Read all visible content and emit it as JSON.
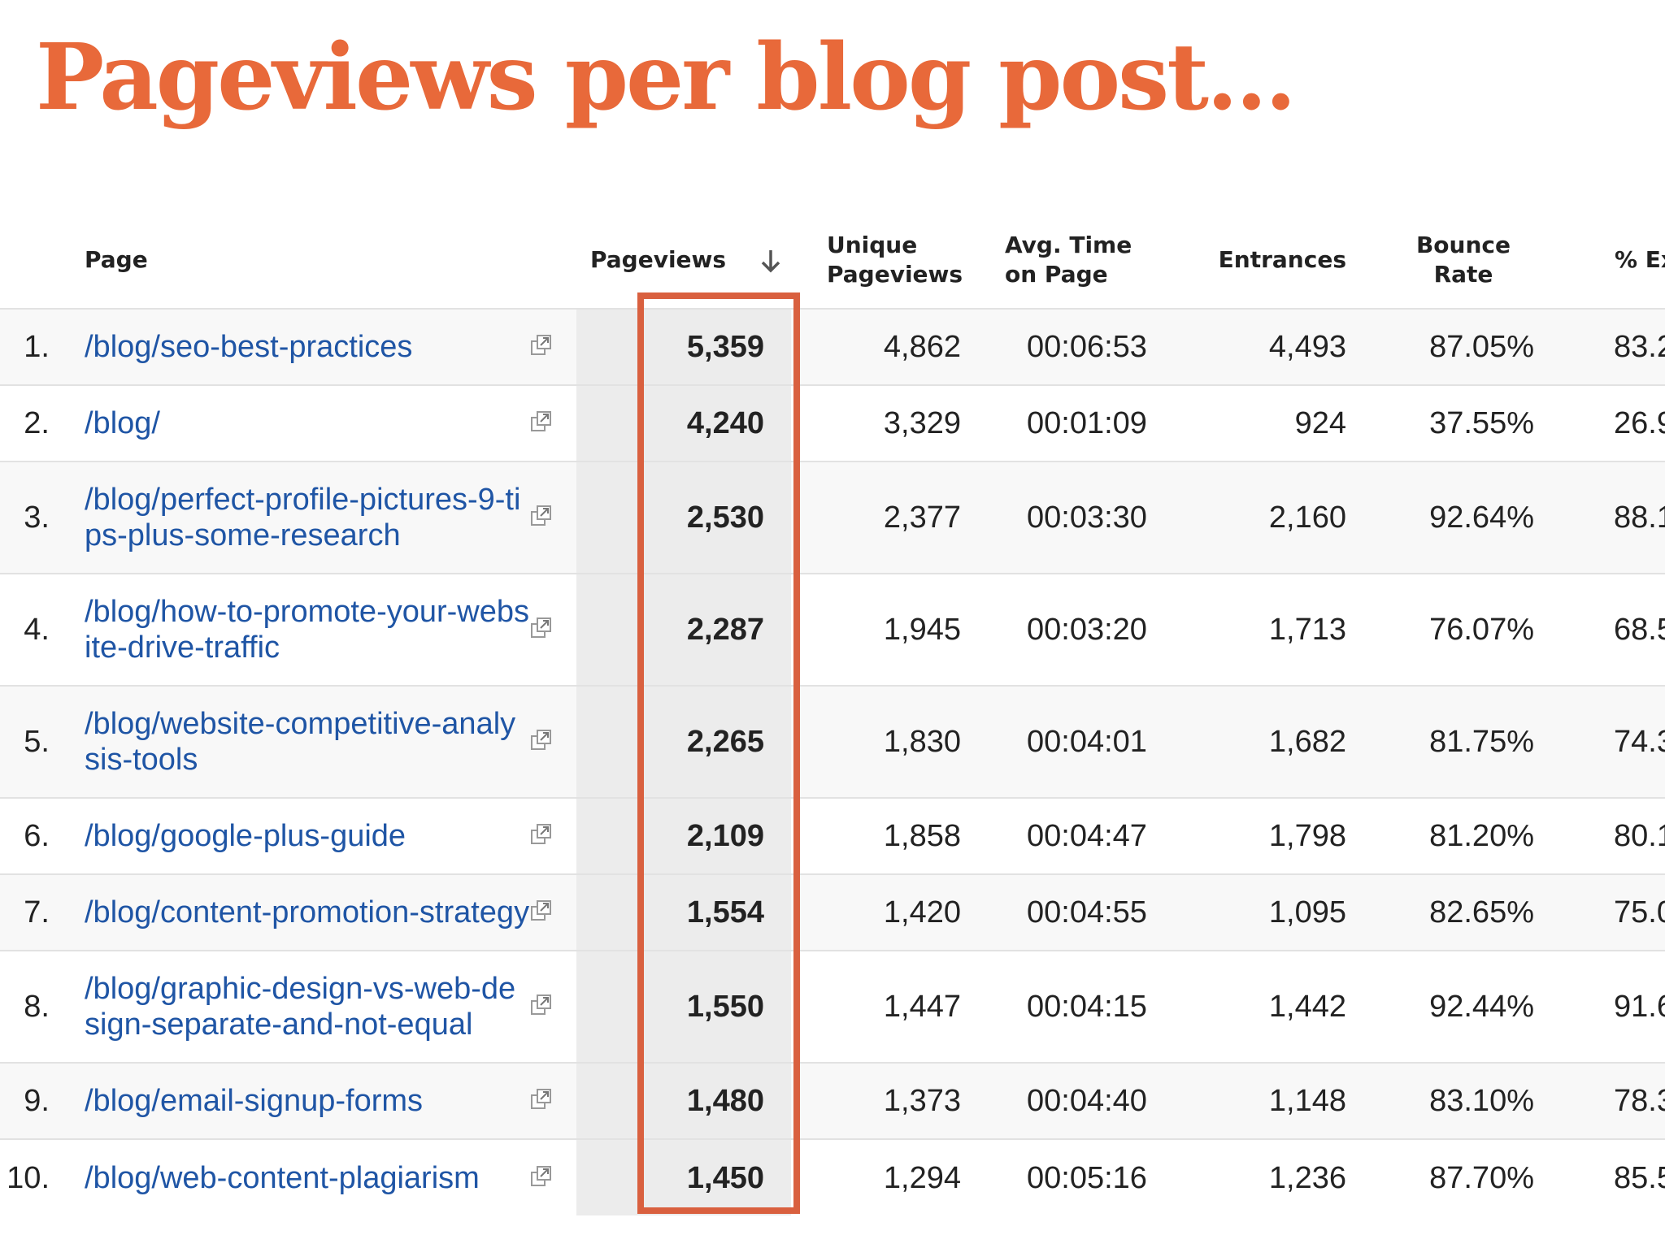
{
  "title": "Pageviews per blog post...",
  "table": {
    "headers": [
      "Page",
      "Pageviews",
      "Unique Pageviews",
      "Avg. Time on Page",
      "Entrances",
      "Bounce Rate",
      "% Exit"
    ],
    "rows": [
      [
        "1.",
        "/blog/seo-best-practices",
        "5,359",
        "4,862",
        "00:06:53",
        "4,493",
        "87.05%",
        "83.2"
      ],
      [
        "2.",
        "/blog/",
        "4,240",
        "3,329",
        "00:01:09",
        "924",
        "37.55%",
        "26.9"
      ],
      [
        "3.",
        "/blog/perfect-profile-pictures-9-tips-plus-some-research",
        "2,530",
        "2,377",
        "00:03:30",
        "2,160",
        "92.64%",
        "88.1"
      ],
      [
        "4.",
        "/blog/how-to-promote-your-website-drive-traffic",
        "2,287",
        "1,945",
        "00:03:20",
        "1,713",
        "76.07%",
        "68.5"
      ],
      [
        "5.",
        "/blog/website-competitive-analysis-tools",
        "2,265",
        "1,830",
        "00:04:01",
        "1,682",
        "81.75%",
        "74.3"
      ],
      [
        "6.",
        "/blog/google-plus-guide",
        "2,109",
        "1,858",
        "00:04:47",
        "1,798",
        "81.20%",
        "80.1"
      ],
      [
        "7.",
        "/blog/content-promotion-strategy",
        "1,554",
        "1,420",
        "00:04:55",
        "1,095",
        "82.65%",
        "75.0"
      ],
      [
        "8.",
        "/blog/graphic-design-vs-web-design-separate-and-not-equal",
        "1,550",
        "1,447",
        "00:04:15",
        "1,442",
        "92.44%",
        "91.6"
      ],
      [
        "9.",
        "/blog/email-signup-forms",
        "1,480",
        "1,373",
        "00:04:40",
        "1,148",
        "83.10%",
        "78.3"
      ],
      [
        "10.",
        "/blog/web-content-plagiarism",
        "1,450",
        "1,294",
        "00:05:16",
        "1,236",
        "87.70%",
        "85.5"
      ]
    ]
  }
}
